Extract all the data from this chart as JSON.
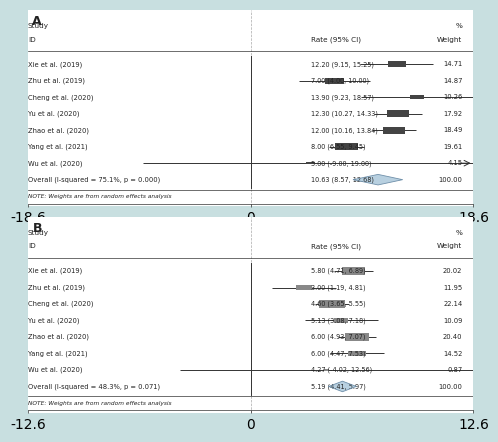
{
  "panel_A": {
    "label": "A",
    "studies": [
      {
        "id": "Xie et al. (2019)",
        "est": 12.2,
        "lo": 9.15,
        "hi": 15.25,
        "weight": 14.71
      },
      {
        "id": "Zhu et al. (2019)",
        "est": 7.0,
        "lo": 4.0,
        "hi": 10.0,
        "weight": 14.87
      },
      {
        "id": "Cheng et al. (2020)",
        "est": 13.9,
        "lo": 9.23,
        "hi": 18.57,
        "weight": 10.26
      },
      {
        "id": "Yu et al. (2020)",
        "est": 12.3,
        "lo": 10.27,
        "hi": 14.33,
        "weight": 17.92
      },
      {
        "id": "Zhao et al. (2020)",
        "est": 12.0,
        "lo": 10.16,
        "hi": 13.84,
        "weight": 18.49
      },
      {
        "id": "Yang et al. (2021)",
        "est": 8.0,
        "lo": 6.55,
        "hi": 9.45,
        "weight": 19.61
      },
      {
        "id": "Wu et al. (2020)",
        "est": 5.0,
        "lo": -9.0,
        "hi": 19.0,
        "weight": 4.15
      }
    ],
    "overall": {
      "est": 10.63,
      "lo": 8.57,
      "hi": 12.68,
      "label": "Overall (I-squared = 75.1%, p = 0.000)"
    },
    "xlim": [
      -18.6,
      18.6
    ],
    "xticks": [
      -18.6,
      0,
      18.6
    ],
    "note": "NOTE: Weights are from random effects analysis"
  },
  "panel_B": {
    "label": "B",
    "studies": [
      {
        "id": "Xie et al. (2019)",
        "est": 5.8,
        "lo": 4.71,
        "hi": 6.89,
        "weight": 20.02
      },
      {
        "id": "Zhu et al. (2019)",
        "est": 3.0,
        "lo": 1.19,
        "hi": 4.81,
        "weight": 11.95
      },
      {
        "id": "Cheng et al. (2020)",
        "est": 4.6,
        "lo": 3.65,
        "hi": 5.55,
        "weight": 22.14
      },
      {
        "id": "Yu et al. (2020)",
        "est": 5.13,
        "lo": 3.08,
        "hi": 7.18,
        "weight": 10.09
      },
      {
        "id": "Zhao et al. (2020)",
        "est": 6.0,
        "lo": 4.93,
        "hi": 7.07,
        "weight": 20.4
      },
      {
        "id": "Yang et al. (2021)",
        "est": 6.0,
        "lo": 4.47,
        "hi": 7.53,
        "weight": 14.52
      },
      {
        "id": "Wu et al. (2020)",
        "est": 4.27,
        "lo": -4.02,
        "hi": 12.56,
        "weight": 0.87
      }
    ],
    "overall": {
      "est": 5.19,
      "lo": 4.41,
      "hi": 5.97,
      "label": "Overall (I-squared = 48.3%, p = 0.071)"
    },
    "xlim": [
      -12.6,
      12.6
    ],
    "xticks": [
      -12.6,
      0,
      12.6
    ],
    "note": "NOTE: Weights are from random effects analysis"
  },
  "bg_color": "#c8dfe0",
  "panel_bg": "#ffffff",
  "box_color_A": "#444444",
  "box_color_B": "#888888",
  "diamond_color": "#b8d0e0",
  "diamond_edge": "#7090aa",
  "line_color": "#333333",
  "vline_color": "#888888",
  "text_color": "#222222",
  "fontsize": 5.2,
  "label_fontsize": 9
}
